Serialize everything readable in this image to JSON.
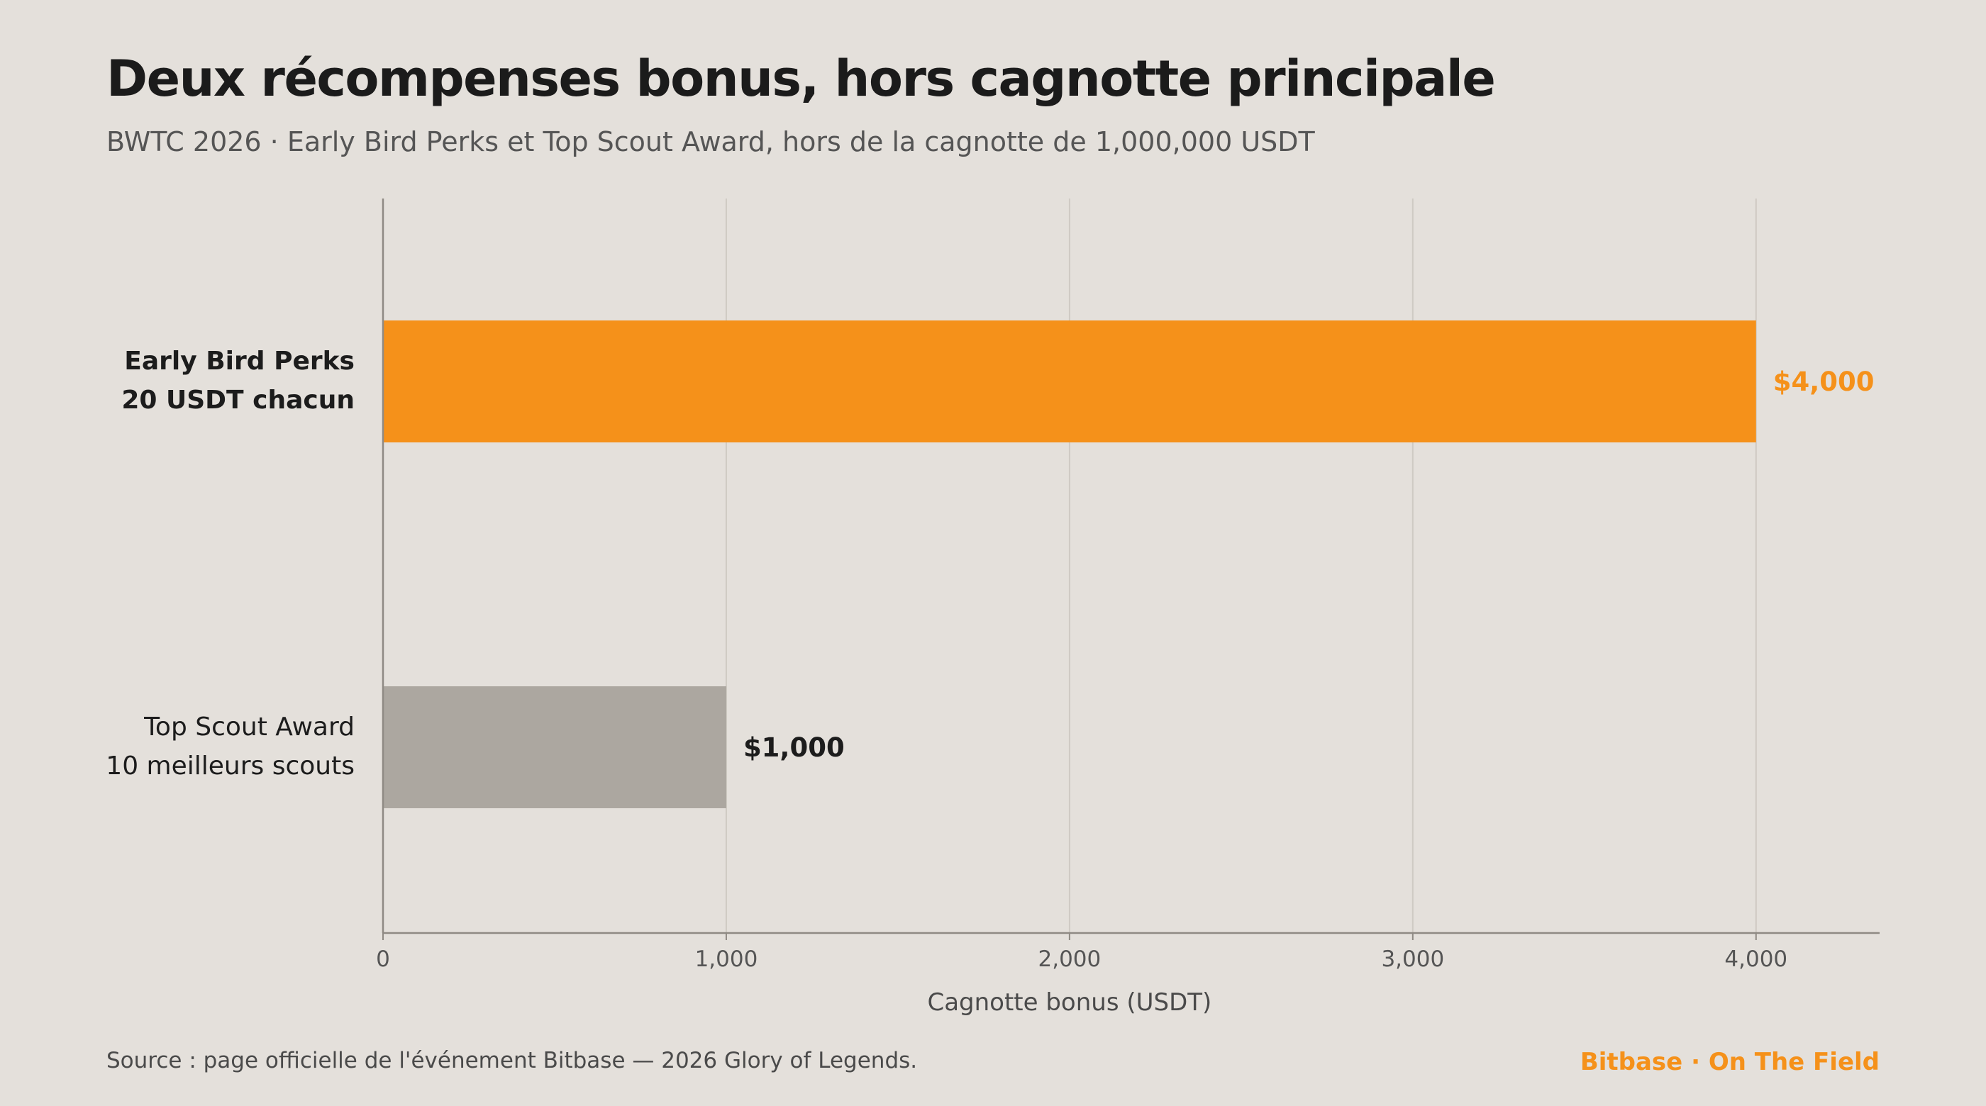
{
  "header": {
    "title": "Deux récompenses bonus, hors cagnotte principale",
    "subtitle": "BWTC 2026 · Early Bird Perks et Top Scout Award, hors de la cagnotte de 1,000,000 USDT"
  },
  "footer": {
    "source": "Source : page officielle de l'événement Bitbase — 2026 Glory of Legends.",
    "brand": "Bitbase · On The Field"
  },
  "chart_data": {
    "type": "bar",
    "orientation": "horizontal",
    "xlabel": "Cagnotte bonus (USDT)",
    "xlim": [
      0,
      4360
    ],
    "xticks": [
      0,
      1000,
      2000,
      3000,
      4000
    ],
    "xtick_labels": [
      "0",
      "1,000",
      "2,000",
      "3,000",
      "4,000"
    ],
    "grid": true,
    "bars": [
      {
        "label_lines": [
          "Early Bird Perks",
          "20 USDT chacun"
        ],
        "value": 4000,
        "value_label": "$4,000",
        "color": "#f5911a",
        "highlight": true
      },
      {
        "label_lines": [
          "Top Scout Award",
          "10 meilleurs scouts"
        ],
        "value": 1000,
        "value_label": "$1,000",
        "color": "#aca7a0",
        "highlight": false
      }
    ],
    "colors": {
      "grid": "#cfcac3",
      "axis": "#8f8a84",
      "tick_text": "#555555",
      "highlight_label": "#f5911a",
      "normal_label": "#1c1c1c"
    }
  }
}
